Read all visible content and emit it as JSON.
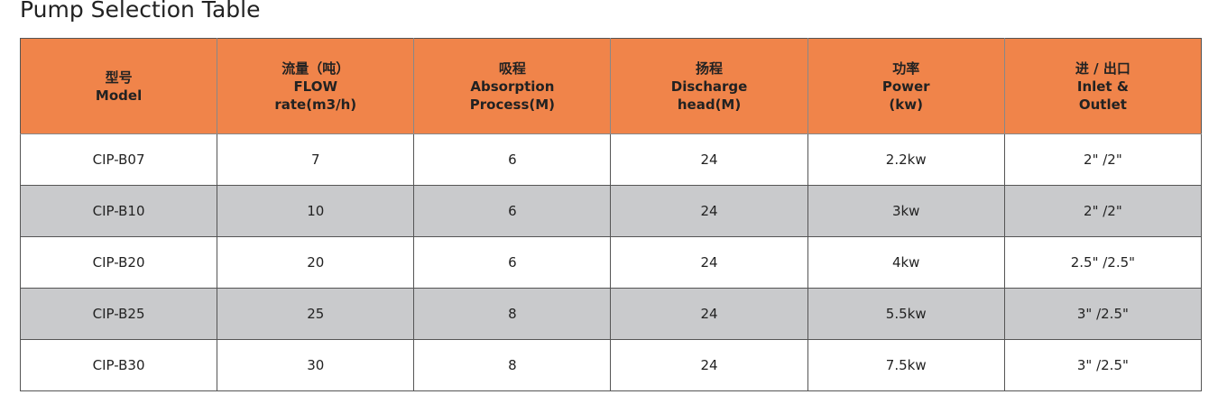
{
  "header": {
    "title": "Pump Selection Table"
  },
  "table": {
    "columns": [
      [
        "型号",
        "Model"
      ],
      [
        "流量（吨）",
        "FLOW",
        "rate(m3/h)"
      ],
      [
        "吸程",
        "Absorption",
        "Process(M)"
      ],
      [
        "扬程",
        "Discharge",
        "head(M)"
      ],
      [
        "功率",
        "Power",
        "(kw)"
      ],
      [
        "进 / 出口",
        "Inlet &",
        "Outlet"
      ]
    ],
    "rows": [
      [
        "CIP-B07",
        "7",
        "6",
        "24",
        "2.2kw",
        "2\"  /2\""
      ],
      [
        "CIP-B10",
        "10",
        "6",
        "24",
        "3kw",
        "2\"  /2\""
      ],
      [
        "CIP-B20",
        "20",
        "6",
        "24",
        "4kw",
        "2.5\"  /2.5\""
      ],
      [
        "CIP-B25",
        "25",
        "8",
        "24",
        "5.5kw",
        "3\"  /2.5\""
      ],
      [
        "CIP-B30",
        "30",
        "8",
        "24",
        "7.5kw",
        "3\"  /2.5\""
      ]
    ]
  }
}
